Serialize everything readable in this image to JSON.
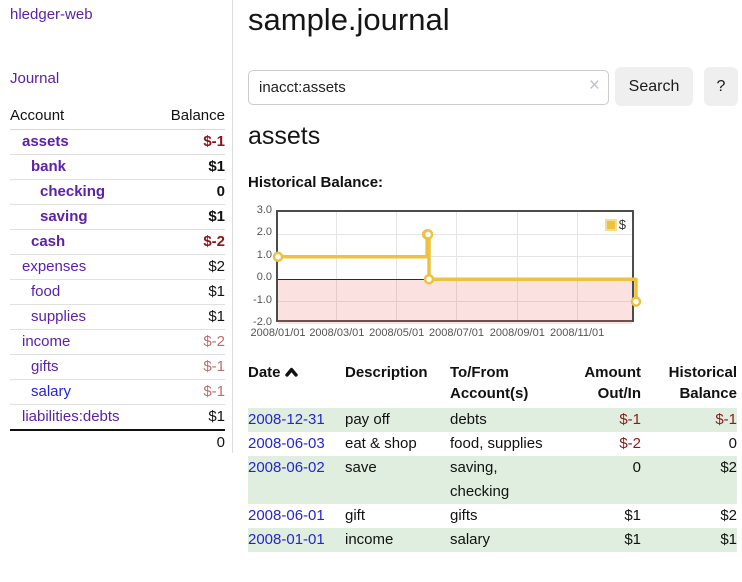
{
  "sidebar": {
    "brand": "hledger-web",
    "journal_link": "Journal",
    "accounts_table": {
      "headers": {
        "account": "Account",
        "balance": "Balance"
      },
      "rows": [
        {
          "label": "assets",
          "balance": "$-1",
          "depth": 1,
          "bold": true,
          "balance_color": "red-strong",
          "link_color": "purple"
        },
        {
          "label": "bank",
          "balance": "$1",
          "depth": 2,
          "bold": true,
          "balance_color": "black",
          "link_color": "purple"
        },
        {
          "label": "checking",
          "balance": "0",
          "depth": 3,
          "bold": true,
          "balance_color": "black",
          "link_color": "purple"
        },
        {
          "label": "saving",
          "balance": "$1",
          "depth": 3,
          "bold": true,
          "balance_color": "black",
          "link_color": "purple"
        },
        {
          "label": "cash",
          "balance": "$-2",
          "depth": 2,
          "bold": true,
          "balance_color": "red-strong",
          "link_color": "purple"
        },
        {
          "label": "expenses",
          "balance": "$2",
          "depth": 1,
          "bold": false,
          "balance_color": "black",
          "link_color": "purple"
        },
        {
          "label": "food",
          "balance": "$1",
          "depth": 2,
          "bold": false,
          "balance_color": "black",
          "link_color": "purple"
        },
        {
          "label": "supplies",
          "balance": "$1",
          "depth": 2,
          "bold": false,
          "balance_color": "black",
          "link_color": "purple"
        },
        {
          "label": "income",
          "balance": "$-2",
          "depth": 1,
          "bold": false,
          "balance_color": "red-soft",
          "link_color": "purple"
        },
        {
          "label": "gifts",
          "balance": "$-1",
          "depth": 2,
          "bold": false,
          "balance_color": "red-soft",
          "link_color": "purple"
        },
        {
          "label": "salary",
          "balance": "$-1",
          "depth": 2,
          "bold": false,
          "balance_color": "red-soft",
          "link_color": "blue"
        },
        {
          "label": "liabilities:debts",
          "balance": "$1",
          "depth": 1,
          "bold": false,
          "balance_color": "black",
          "link_color": "purple"
        }
      ],
      "total": "0"
    }
  },
  "main": {
    "title": "sample.journal",
    "search": {
      "value": "inacct:assets",
      "clear_icon": "×",
      "search_button": "Search",
      "help_button": "?"
    },
    "account_heading": "assets",
    "chart_heading": "Historical Balance:"
  },
  "chart_data": {
    "type": "line",
    "title": "Historical Balance",
    "step": true,
    "series": [
      {
        "name": "$",
        "color": "#edc240",
        "points": [
          {
            "date": "2008-01-01",
            "value": 1
          },
          {
            "date": "2008-06-01",
            "value": 2
          },
          {
            "date": "2008-06-02",
            "value": 2
          },
          {
            "date": "2008-06-03",
            "value": 0
          },
          {
            "date": "2008-12-31",
            "value": -1
          }
        ]
      }
    ],
    "ylim": [
      -2,
      3
    ],
    "yticks": [
      "3.0",
      "2.0",
      "1.0",
      "0.0",
      "-1.0",
      "-2.0"
    ],
    "xticks": [
      {
        "date": "2008-01-01",
        "label": "2008/01/01"
      },
      {
        "date": "2008-03-01",
        "label": "2008/03/01"
      },
      {
        "date": "2008-05-01",
        "label": "2008/05/01"
      },
      {
        "date": "2008-07-01",
        "label": "2008/07/01"
      },
      {
        "date": "2008-09-01",
        "label": "2008/09/01"
      },
      {
        "date": "2008-11-01",
        "label": "2008/11/01"
      }
    ],
    "xrange": [
      "2008-01-01",
      "2008-12-31"
    ],
    "legend": {
      "label": "$",
      "position": "top-right"
    },
    "grid": true,
    "negative_region_color": "#fbdada",
    "zero_line_color": "#940000"
  },
  "transactions": {
    "headers": {
      "date": "Date",
      "description": "Description",
      "accounts": "To/From Account(s)",
      "amount": "Amount Out/In",
      "balance": "Historical Balance"
    },
    "sort": {
      "column": "date",
      "direction": "ascending"
    },
    "rows": [
      {
        "date": "2008-12-31",
        "description": "pay off",
        "accounts": "debts",
        "amount": "$-1",
        "amount_negative": true,
        "balance": "$-1",
        "balance_negative": true,
        "striped": true
      },
      {
        "date": "2008-06-03",
        "description": "eat & shop",
        "accounts": "food, supplies",
        "amount": "$-2",
        "amount_negative": true,
        "balance": "0",
        "balance_negative": false,
        "striped": false
      },
      {
        "date": "2008-06-02",
        "description": "save",
        "accounts": "saving, checking",
        "amount": "0",
        "amount_negative": false,
        "balance": "$2",
        "balance_negative": false,
        "striped": true
      },
      {
        "date": "2008-06-01",
        "description": "gift",
        "accounts": "gifts",
        "amount": "$1",
        "amount_negative": false,
        "balance": "$2",
        "balance_negative": false,
        "striped": false
      },
      {
        "date": "2008-01-01",
        "description": "income",
        "accounts": "salary",
        "amount": "$1",
        "amount_negative": false,
        "balance": "$1",
        "balance_negative": false,
        "striped": true
      }
    ]
  }
}
